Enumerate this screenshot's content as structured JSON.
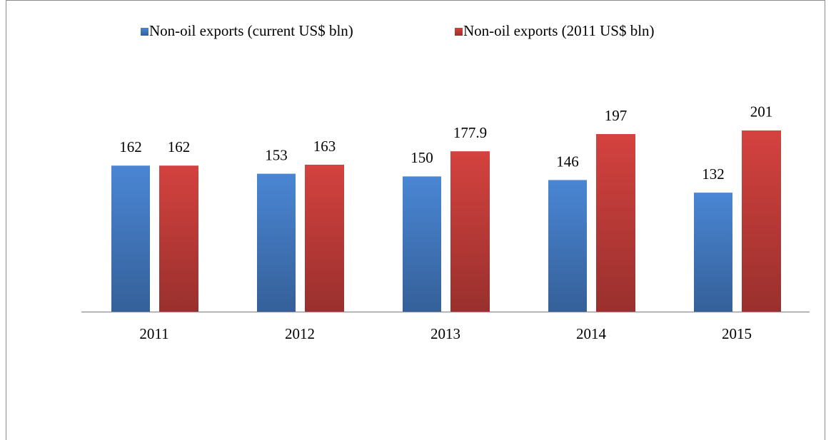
{
  "chart_data": {
    "type": "bar",
    "categories": [
      "2011",
      "2012",
      "2013",
      "2014",
      "2015"
    ],
    "series": [
      {
        "name": "Non-oil exports (current US$ bln)",
        "color": "#4a86d4",
        "values": [
          162,
          153,
          150,
          146,
          132
        ]
      },
      {
        "name": "Non-oil exports (2011 US$ bln)",
        "color": "#d4423f",
        "values": [
          162,
          163,
          177.9,
          197,
          201
        ]
      }
    ],
    "ylim": [
      0,
      250
    ]
  }
}
